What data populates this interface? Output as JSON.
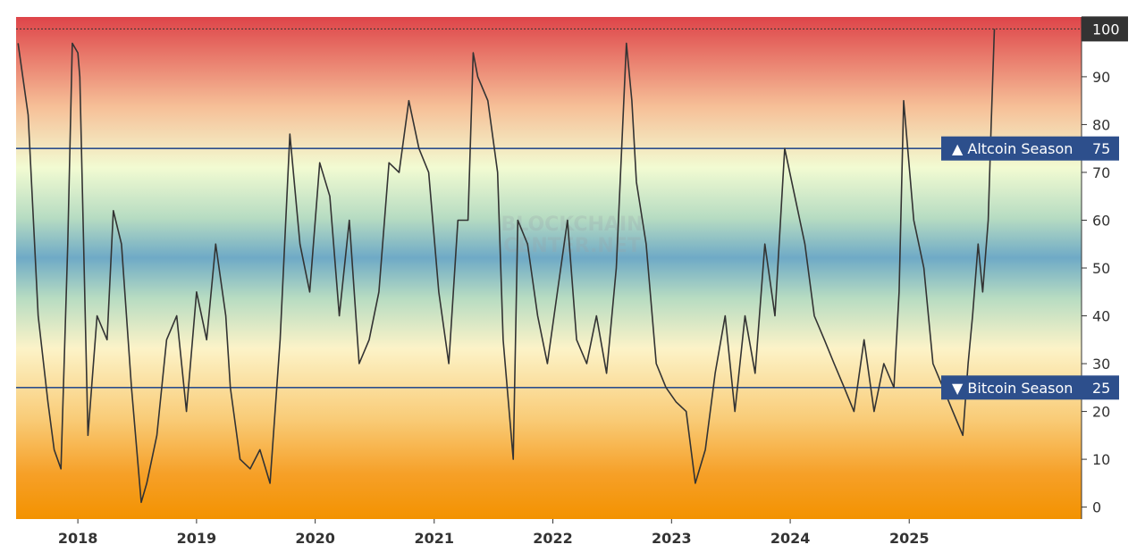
{
  "watermark_lines": [
    "BLOCKCHAIN",
    "CENTER.NET"
  ],
  "chart_data": {
    "type": "line",
    "xlim": [
      "2017-06-25",
      "2026-06-15"
    ],
    "ylim": [
      -2.5,
      102.5
    ],
    "y_ticks": [
      0,
      10,
      20,
      30,
      40,
      50,
      60,
      70,
      80,
      90
    ],
    "y_ticks_text": [
      "0",
      "10",
      "20",
      "30",
      "40",
      "50",
      "60",
      "70",
      "80",
      "90"
    ],
    "x_ticks": [
      {
        "label": "2018",
        "date": "2018-01-01"
      },
      {
        "label": "2019",
        "date": "2019-01-01"
      },
      {
        "label": "2020",
        "date": "2020-01-01"
      },
      {
        "label": "2021",
        "date": "2021-01-01"
      },
      {
        "label": "2022",
        "date": "2022-01-01"
      },
      {
        "label": "2023",
        "date": "2023-01-01"
      },
      {
        "label": "2024",
        "date": "2024-01-01"
      },
      {
        "label": "2025",
        "date": "2025-01-01"
      }
    ],
    "current": {
      "value": 100,
      "label": "100",
      "color": "#333333"
    },
    "thresholds": [
      {
        "value": 75,
        "text": "▲ Altcoin Season",
        "value_text": "75",
        "color": "#2d4f8c"
      },
      {
        "value": 25,
        "text": "▼ Bitcoin Season",
        "value_text": "25",
        "color": "#2d4f8c"
      }
    ],
    "background_gradient": [
      {
        "stop": 0.0,
        "color": "#f39200"
      },
      {
        "stop": 0.09,
        "color": "#f6a028"
      },
      {
        "stop": 0.2,
        "color": "#f9cc78"
      },
      {
        "stop": 0.34,
        "color": "#fcf3c8"
      },
      {
        "stop": 0.44,
        "color": "#b7dcc2"
      },
      {
        "stop": 0.52,
        "color": "#6faac6"
      },
      {
        "stop": 0.6,
        "color": "#b7dcc2"
      },
      {
        "stop": 0.7,
        "color": "#f2fbd2"
      },
      {
        "stop": 0.82,
        "color": "#f6c098"
      },
      {
        "stop": 1.0,
        "color": "#de4449"
      }
    ],
    "line_color": "#333333",
    "series": [
      {
        "x": [
          "2017-07-01",
          "2017-08-01",
          "2017-09-01",
          "2017-10-01",
          "2017-10-20",
          "2017-11-10",
          "2017-12-01",
          "2017-12-15",
          "2018-01-01",
          "2018-01-07",
          "2018-02-01",
          "2018-03-01",
          "2018-04-01",
          "2018-04-20",
          "2018-05-15",
          "2018-06-15",
          "2018-07-15",
          "2018-08-01",
          "2018-09-01",
          "2018-10-01",
          "2018-11-01",
          "2018-12-01",
          "2019-01-01",
          "2019-02-01",
          "2019-03-01",
          "2019-04-01",
          "2019-04-15",
          "2019-05-15",
          "2019-06-15",
          "2019-07-15",
          "2019-08-15",
          "2019-09-15",
          "2019-10-15",
          "2019-11-15",
          "2019-12-15",
          "2020-01-15",
          "2020-02-15",
          "2020-03-15",
          "2020-04-15",
          "2020-05-15",
          "2020-06-15",
          "2020-07-15",
          "2020-08-15",
          "2020-09-15",
          "2020-10-15",
          "2020-11-15",
          "2020-12-15",
          "2021-01-15",
          "2021-02-15",
          "2021-03-15",
          "2021-04-15",
          "2021-05-01",
          "2021-05-15",
          "2021-06-15",
          "2021-07-15",
          "2021-08-01",
          "2021-09-01",
          "2021-09-15",
          "2021-10-15",
          "2021-11-15",
          "2021-12-15",
          "2022-01-15",
          "2022-02-15",
          "2022-03-15",
          "2022-04-15",
          "2022-05-15",
          "2022-06-15",
          "2022-07-15",
          "2022-08-15",
          "2022-09-01",
          "2022-09-15",
          "2022-10-15",
          "2022-11-15",
          "2022-12-15",
          "2023-01-15",
          "2023-02-15",
          "2023-03-15",
          "2023-04-15",
          "2023-05-15",
          "2023-06-15",
          "2023-07-15",
          "2023-08-15",
          "2023-09-15",
          "2023-10-15",
          "2023-11-15",
          "2023-12-15",
          "2024-01-15",
          "2024-02-15",
          "2024-03-15",
          "2024-04-15",
          "2024-05-15",
          "2024-06-15",
          "2024-07-15",
          "2024-08-15",
          "2024-09-15",
          "2024-10-15",
          "2024-11-15",
          "2024-12-01",
          "2024-12-15",
          "2025-01-15",
          "2025-02-15",
          "2025-03-15",
          "2025-04-15",
          "2025-05-15",
          "2025-06-15",
          "2025-07-01",
          "2025-07-15",
          "2025-08-01",
          "2025-08-15",
          "2025-09-01",
          "2025-09-10",
          "2025-09-20"
        ],
        "y": [
          97,
          82,
          40,
          22,
          12,
          8,
          55,
          97,
          95,
          90,
          15,
          40,
          35,
          62,
          55,
          25,
          1,
          5,
          15,
          35,
          40,
          20,
          45,
          35,
          55,
          40,
          25,
          10,
          8,
          12,
          5,
          35,
          78,
          55,
          45,
          72,
          65,
          40,
          60,
          30,
          35,
          45,
          72,
          70,
          85,
          75,
          70,
          45,
          30,
          60,
          60,
          95,
          90,
          85,
          70,
          35,
          10,
          60,
          55,
          40,
          30,
          45,
          60,
          35,
          30,
          40,
          28,
          50,
          97,
          85,
          68,
          55,
          30,
          25,
          22,
          20,
          5,
          12,
          28,
          40,
          20,
          40,
          28,
          55,
          40,
          75,
          65,
          55,
          40,
          35,
          30,
          25,
          20,
          35,
          20,
          30,
          25,
          45,
          85,
          60,
          50,
          30,
          25,
          20,
          15,
          30,
          40,
          55,
          45,
          60,
          80,
          100
        ]
      }
    ]
  }
}
